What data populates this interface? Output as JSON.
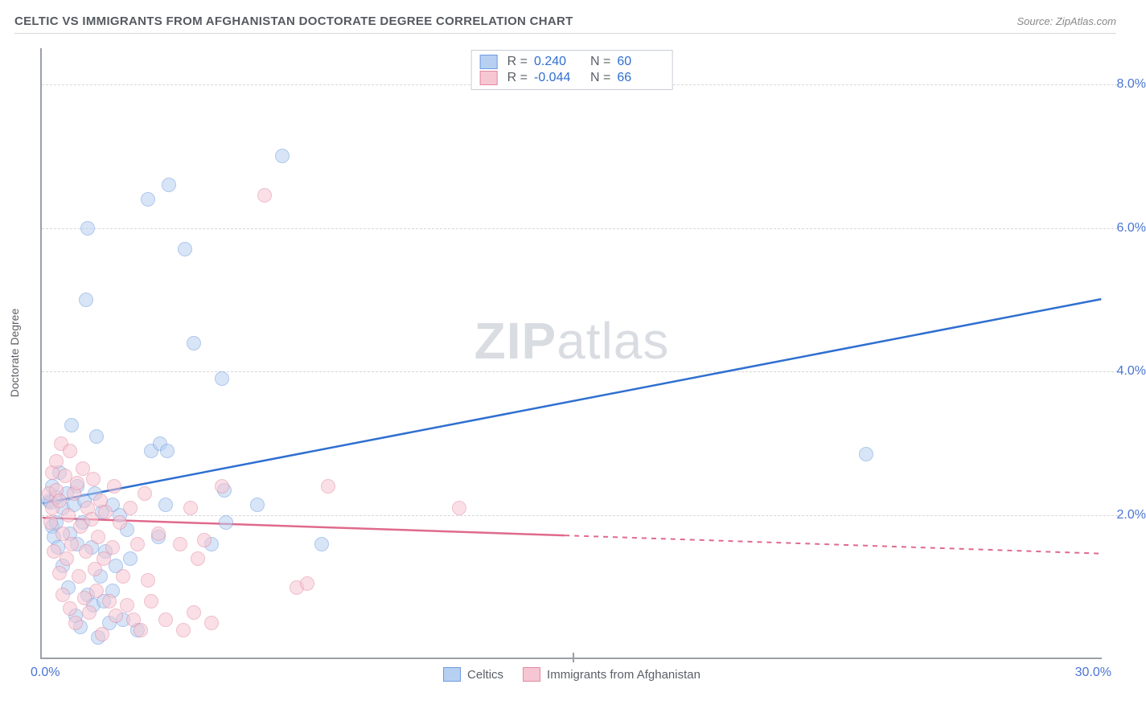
{
  "title": "CELTIC VS IMMIGRANTS FROM AFGHANISTAN DOCTORATE DEGREE CORRELATION CHART",
  "source_label": "Source: ZipAtlas.com",
  "watermark": {
    "bold": "ZIP",
    "light": "atlas"
  },
  "y_axis_title": "Doctorate Degree",
  "chart": {
    "type": "scatter",
    "xlim": [
      0,
      30
    ],
    "ylim": [
      0,
      8.5
    ],
    "x_origin_label": "0.0%",
    "x_end_label": "30.0%",
    "x_midtick_at": 15,
    "y_ticks": [
      {
        "v": 2.0,
        "label": "2.0%"
      },
      {
        "v": 4.0,
        "label": "4.0%"
      },
      {
        "v": 6.0,
        "label": "6.0%"
      },
      {
        "v": 8.0,
        "label": "8.0%"
      }
    ],
    "y_tick_color": "#4a74d4",
    "x_label_color": "#4a74d4",
    "grid_color": "#d8d8d8",
    "background": "#ffffff",
    "point_radius": 9,
    "point_opacity": 0.55,
    "series": [
      {
        "key": "celtics",
        "label": "Celtics",
        "fill": "#b7d0f2",
        "stroke": "#6f9be0",
        "line_color": "#2f6fd0",
        "R": "0.240",
        "N": "60",
        "trend": {
          "x1": 0,
          "y1": 2.15,
          "x2": 30,
          "y2": 5.0,
          "solid_until_x": 30
        },
        "points": [
          [
            0.2,
            2.2
          ],
          [
            0.25,
            2.18
          ],
          [
            0.3,
            2.4
          ],
          [
            0.3,
            1.85
          ],
          [
            0.35,
            1.7
          ],
          [
            0.4,
            1.9
          ],
          [
            0.4,
            2.25
          ],
          [
            0.45,
            1.55
          ],
          [
            0.5,
            2.6
          ],
          [
            0.6,
            1.3
          ],
          [
            0.6,
            2.1
          ],
          [
            0.7,
            2.3
          ],
          [
            0.75,
            1.0
          ],
          [
            0.8,
            1.75
          ],
          [
            0.85,
            3.25
          ],
          [
            0.9,
            2.15
          ],
          [
            0.95,
            0.6
          ],
          [
            1.0,
            1.6
          ],
          [
            1.0,
            2.4
          ],
          [
            1.1,
            0.45
          ],
          [
            1.15,
            1.9
          ],
          [
            1.2,
            2.2
          ],
          [
            1.25,
            5.0
          ],
          [
            1.3,
            0.9
          ],
          [
            1.3,
            6.0
          ],
          [
            1.4,
            1.55
          ],
          [
            1.45,
            0.75
          ],
          [
            1.5,
            2.3
          ],
          [
            1.55,
            3.1
          ],
          [
            1.6,
            0.3
          ],
          [
            1.65,
            1.15
          ],
          [
            1.7,
            2.05
          ],
          [
            1.75,
            0.8
          ],
          [
            1.8,
            1.5
          ],
          [
            1.9,
            0.5
          ],
          [
            2.0,
            2.15
          ],
          [
            2.0,
            0.95
          ],
          [
            2.1,
            1.3
          ],
          [
            2.2,
            2.0
          ],
          [
            2.3,
            0.55
          ],
          [
            2.4,
            1.8
          ],
          [
            2.5,
            1.4
          ],
          [
            2.7,
            0.4
          ],
          [
            3.0,
            6.4
          ],
          [
            3.1,
            2.9
          ],
          [
            3.3,
            1.7
          ],
          [
            3.35,
            3.0
          ],
          [
            3.5,
            2.15
          ],
          [
            3.55,
            2.9
          ],
          [
            3.6,
            6.6
          ],
          [
            4.05,
            5.7
          ],
          [
            4.3,
            4.4
          ],
          [
            4.8,
            1.6
          ],
          [
            5.1,
            3.9
          ],
          [
            5.15,
            2.35
          ],
          [
            5.2,
            1.9
          ],
          [
            6.1,
            2.15
          ],
          [
            6.8,
            7.0
          ],
          [
            7.9,
            1.6
          ],
          [
            23.3,
            2.85
          ]
        ]
      },
      {
        "key": "afghanistan",
        "label": "Immigrants from Afghanistan",
        "fill": "#f6c6d2",
        "stroke": "#e38aa2",
        "line_color": "#e06a8c",
        "R": "-0.044",
        "N": "66",
        "trend": {
          "x1": 0,
          "y1": 1.95,
          "x2": 30,
          "y2": 1.45,
          "solid_until_x": 14.8
        },
        "points": [
          [
            0.2,
            2.3
          ],
          [
            0.25,
            1.9
          ],
          [
            0.3,
            2.6
          ],
          [
            0.3,
            2.1
          ],
          [
            0.35,
            1.5
          ],
          [
            0.4,
            2.35
          ],
          [
            0.4,
            2.75
          ],
          [
            0.5,
            1.2
          ],
          [
            0.5,
            2.2
          ],
          [
            0.55,
            3.0
          ],
          [
            0.6,
            1.75
          ],
          [
            0.6,
            0.9
          ],
          [
            0.65,
            2.55
          ],
          [
            0.7,
            1.4
          ],
          [
            0.75,
            2.0
          ],
          [
            0.8,
            2.9
          ],
          [
            0.8,
            0.7
          ],
          [
            0.85,
            1.6
          ],
          [
            0.9,
            2.3
          ],
          [
            0.95,
            0.5
          ],
          [
            1.0,
            2.45
          ],
          [
            1.05,
            1.15
          ],
          [
            1.1,
            1.85
          ],
          [
            1.15,
            2.65
          ],
          [
            1.2,
            0.85
          ],
          [
            1.25,
            1.5
          ],
          [
            1.3,
            2.1
          ],
          [
            1.35,
            0.65
          ],
          [
            1.4,
            1.95
          ],
          [
            1.45,
            2.5
          ],
          [
            1.5,
            1.25
          ],
          [
            1.55,
            0.95
          ],
          [
            1.6,
            1.7
          ],
          [
            1.65,
            2.2
          ],
          [
            1.7,
            0.35
          ],
          [
            1.75,
            1.4
          ],
          [
            1.8,
            2.05
          ],
          [
            1.9,
            0.8
          ],
          [
            2.0,
            1.55
          ],
          [
            2.05,
            2.4
          ],
          [
            2.1,
            0.6
          ],
          [
            2.2,
            1.9
          ],
          [
            2.3,
            1.15
          ],
          [
            2.4,
            0.75
          ],
          [
            2.5,
            2.1
          ],
          [
            2.6,
            0.55
          ],
          [
            2.7,
            1.6
          ],
          [
            2.8,
            0.4
          ],
          [
            2.9,
            2.3
          ],
          [
            3.0,
            1.1
          ],
          [
            3.1,
            0.8
          ],
          [
            3.3,
            1.75
          ],
          [
            3.5,
            0.55
          ],
          [
            3.9,
            1.6
          ],
          [
            4.0,
            0.4
          ],
          [
            4.2,
            2.1
          ],
          [
            4.3,
            0.65
          ],
          [
            4.4,
            1.4
          ],
          [
            4.6,
            1.65
          ],
          [
            4.8,
            0.5
          ],
          [
            5.1,
            2.4
          ],
          [
            6.3,
            6.45
          ],
          [
            7.2,
            1.0
          ],
          [
            7.5,
            1.05
          ],
          [
            8.1,
            2.4
          ],
          [
            11.8,
            2.1
          ]
        ]
      }
    ],
    "legend_top": {
      "stat_value_color": "#2f6fd0",
      "R_label": "R =",
      "N_label": "N ="
    }
  }
}
